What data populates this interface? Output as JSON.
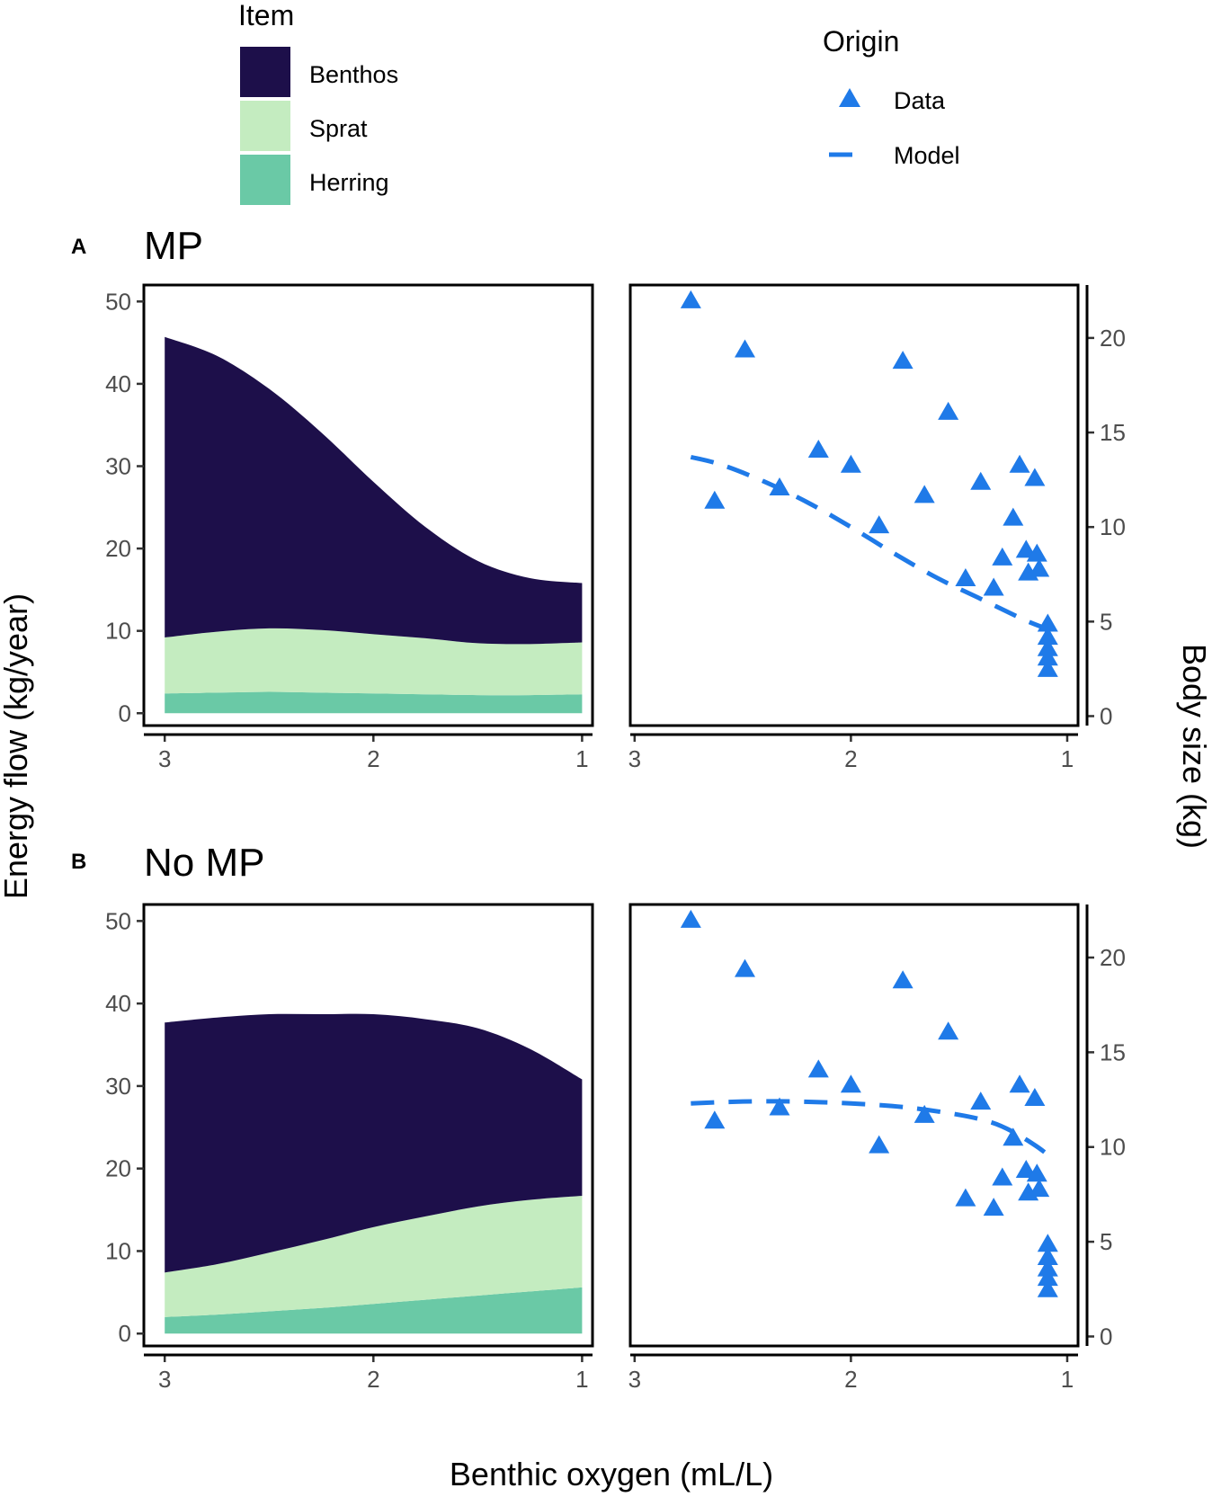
{
  "legend_item": {
    "title": "Item",
    "entries": [
      {
        "label": "Benthos",
        "color": "#1d0f4a"
      },
      {
        "label": "Sprat",
        "color": "#c4ecc0"
      },
      {
        "label": "Herring",
        "color": "#6ac9a6"
      }
    ]
  },
  "legend_origin": {
    "title": "Origin",
    "data_label": "Data",
    "model_label": "Model",
    "color": "#1f7ae8"
  },
  "axes": {
    "y_left_title": "Energy flow (kg/year)",
    "y_right_title": "Body size (kg)",
    "x_title": "Benthic oxygen (mL/L)",
    "x_ticks": [
      3,
      2,
      1
    ],
    "y_left_ticks": [
      0,
      10,
      20,
      30,
      40,
      50
    ],
    "y_right_ticks": [
      0,
      5,
      10,
      15,
      20
    ]
  },
  "chart_data": [
    {
      "panel": "A",
      "title": "MP",
      "type": "area",
      "stacked": true,
      "xlabel": "Benthic oxygen (mL/L)",
      "ylabel": "Energy flow (kg/year)",
      "x_reversed": true,
      "xlim": [
        3.1,
        0.95
      ],
      "ylim": [
        -1.5,
        52
      ],
      "x": [
        3.0,
        2.75,
        2.5,
        2.25,
        2.0,
        1.75,
        1.5,
        1.25,
        1.0
      ],
      "series": [
        {
          "name": "Herring",
          "values": [
            2.4,
            2.5,
            2.6,
            2.5,
            2.4,
            2.3,
            2.2,
            2.2,
            2.3
          ]
        },
        {
          "name": "Sprat",
          "values": [
            6.8,
            7.4,
            7.7,
            7.6,
            7.2,
            6.8,
            6.3,
            6.2,
            6.3
          ]
        },
        {
          "name": "Benthos",
          "values": [
            36.5,
            33.5,
            29.1,
            24.0,
            18.5,
            13.5,
            10.0,
            8.0,
            7.2
          ]
        }
      ]
    },
    {
      "panel": "A",
      "title": "MP",
      "type": "scatter",
      "ylabel": "Body size (kg)",
      "x_reversed": true,
      "xlim": [
        3.02,
        0.95
      ],
      "ylim": [
        -0.5,
        22.8
      ],
      "data_points": [
        {
          "x": 2.74,
          "y": 22.0
        },
        {
          "x": 2.63,
          "y": 11.4
        },
        {
          "x": 2.49,
          "y": 19.4
        },
        {
          "x": 2.33,
          "y": 12.1
        },
        {
          "x": 2.15,
          "y": 14.1
        },
        {
          "x": 2.0,
          "y": 13.3
        },
        {
          "x": 1.87,
          "y": 10.1
        },
        {
          "x": 1.76,
          "y": 18.8
        },
        {
          "x": 1.66,
          "y": 11.7
        },
        {
          "x": 1.55,
          "y": 16.1
        },
        {
          "x": 1.47,
          "y": 7.3
        },
        {
          "x": 1.4,
          "y": 12.4
        },
        {
          "x": 1.34,
          "y": 6.8
        },
        {
          "x": 1.3,
          "y": 8.4
        },
        {
          "x": 1.25,
          "y": 10.5
        },
        {
          "x": 1.22,
          "y": 13.3
        },
        {
          "x": 1.19,
          "y": 8.8
        },
        {
          "x": 1.18,
          "y": 7.6
        },
        {
          "x": 1.15,
          "y": 12.6
        },
        {
          "x": 1.14,
          "y": 8.6
        },
        {
          "x": 1.13,
          "y": 7.8
        },
        {
          "x": 1.09,
          "y": 4.9
        },
        {
          "x": 1.09,
          "y": 4.2
        },
        {
          "x": 1.09,
          "y": 3.6
        },
        {
          "x": 1.09,
          "y": 3.1
        },
        {
          "x": 1.09,
          "y": 2.5
        }
      ],
      "model_line": {
        "x": [
          2.74,
          2.6,
          2.4,
          2.2,
          2.0,
          1.8,
          1.6,
          1.4,
          1.2,
          1.09
        ],
        "y": [
          13.7,
          13.3,
          12.4,
          11.3,
          10.0,
          8.6,
          7.3,
          6.2,
          5.1,
          4.6
        ]
      }
    },
    {
      "panel": "B",
      "title": "No MP",
      "type": "area",
      "stacked": true,
      "xlabel": "Benthic oxygen (mL/L)",
      "ylabel": "Energy flow (kg/year)",
      "x_reversed": true,
      "xlim": [
        3.1,
        0.95
      ],
      "ylim": [
        -1.5,
        52
      ],
      "x": [
        3.0,
        2.75,
        2.5,
        2.25,
        2.0,
        1.75,
        1.5,
        1.25,
        1.0
      ],
      "series": [
        {
          "name": "Herring",
          "values": [
            2.0,
            2.3,
            2.7,
            3.1,
            3.6,
            4.1,
            4.6,
            5.1,
            5.6
          ]
        },
        {
          "name": "Sprat",
          "values": [
            5.4,
            6.1,
            7.1,
            8.2,
            9.3,
            10.1,
            10.8,
            11.1,
            11.1
          ]
        },
        {
          "name": "Benthos",
          "values": [
            30.3,
            29.9,
            28.9,
            27.4,
            25.8,
            23.9,
            21.6,
            18.3,
            14.1
          ]
        }
      ]
    },
    {
      "panel": "B",
      "title": "No MP",
      "type": "scatter",
      "ylabel": "Body size (kg)",
      "x_reversed": true,
      "xlim": [
        3.02,
        0.95
      ],
      "ylim": [
        -0.5,
        22.8
      ],
      "data_points": [
        {
          "x": 2.74,
          "y": 22.0
        },
        {
          "x": 2.63,
          "y": 11.4
        },
        {
          "x": 2.49,
          "y": 19.4
        },
        {
          "x": 2.33,
          "y": 12.1
        },
        {
          "x": 2.15,
          "y": 14.1
        },
        {
          "x": 2.0,
          "y": 13.3
        },
        {
          "x": 1.87,
          "y": 10.1
        },
        {
          "x": 1.76,
          "y": 18.8
        },
        {
          "x": 1.66,
          "y": 11.7
        },
        {
          "x": 1.55,
          "y": 16.1
        },
        {
          "x": 1.47,
          "y": 7.3
        },
        {
          "x": 1.4,
          "y": 12.4
        },
        {
          "x": 1.34,
          "y": 6.8
        },
        {
          "x": 1.3,
          "y": 8.4
        },
        {
          "x": 1.25,
          "y": 10.5
        },
        {
          "x": 1.22,
          "y": 13.3
        },
        {
          "x": 1.19,
          "y": 8.8
        },
        {
          "x": 1.18,
          "y": 7.6
        },
        {
          "x": 1.15,
          "y": 12.6
        },
        {
          "x": 1.14,
          "y": 8.6
        },
        {
          "x": 1.13,
          "y": 7.8
        },
        {
          "x": 1.09,
          "y": 4.9
        },
        {
          "x": 1.09,
          "y": 4.2
        },
        {
          "x": 1.09,
          "y": 3.6
        },
        {
          "x": 1.09,
          "y": 3.1
        },
        {
          "x": 1.09,
          "y": 2.5
        }
      ],
      "model_line": {
        "x": [
          2.74,
          2.5,
          2.25,
          2.0,
          1.75,
          1.5,
          1.35,
          1.25,
          1.15,
          1.09
        ],
        "y": [
          12.3,
          12.4,
          12.4,
          12.3,
          12.1,
          11.7,
          11.3,
          10.8,
          10.1,
          9.6
        ]
      }
    }
  ]
}
